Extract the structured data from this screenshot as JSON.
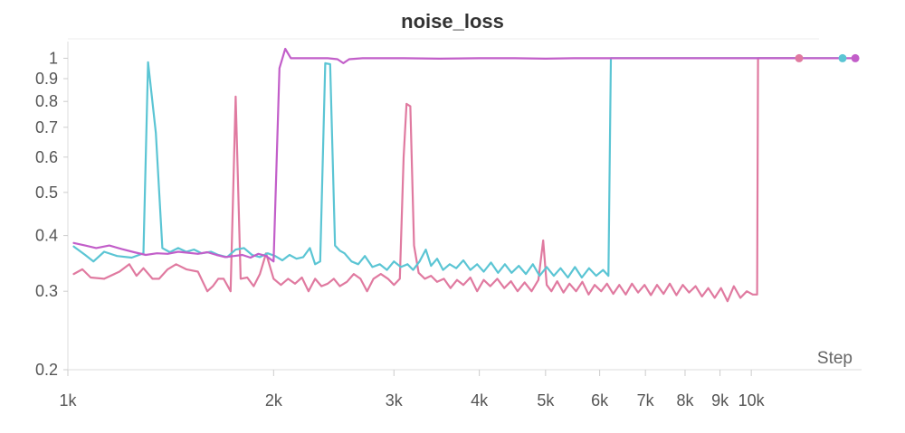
{
  "chart_data": {
    "type": "line",
    "title": "noise_loss",
    "xlabel": "Step",
    "ylabel": "",
    "xscale": "log",
    "yscale": "log",
    "xlim": [
      1000,
      14500
    ],
    "ylim": [
      0.2,
      1.05
    ],
    "grid": false,
    "legend": "none",
    "x_ticks": [
      {
        "value": 1000,
        "label": "1k"
      },
      {
        "value": 2000,
        "label": "2k"
      },
      {
        "value": 3000,
        "label": "3k"
      },
      {
        "value": 4000,
        "label": "4k"
      },
      {
        "value": 5000,
        "label": "5k"
      },
      {
        "value": 6000,
        "label": "6k"
      },
      {
        "value": 7000,
        "label": "7k"
      },
      {
        "value": 8000,
        "label": "8k"
      },
      {
        "value": 9000,
        "label": "9k"
      },
      {
        "value": 10000,
        "label": "10k"
      }
    ],
    "y_ticks": [
      {
        "value": 0.2,
        "label": "0.2"
      },
      {
        "value": 0.3,
        "label": "0.3"
      },
      {
        "value": 0.4,
        "label": "0.4"
      },
      {
        "value": 0.5,
        "label": "0.5"
      },
      {
        "value": 0.6,
        "label": "0.6"
      },
      {
        "value": 0.7,
        "label": "0.7"
      },
      {
        "value": 0.8,
        "label": "0.8"
      },
      {
        "value": 0.9,
        "label": "0.9"
      },
      {
        "value": 1,
        "label": "1"
      }
    ],
    "series": [
      {
        "color": "#e07aa0",
        "points": [
          [
            1020,
            0.328
          ],
          [
            1050,
            0.336
          ],
          [
            1080,
            0.322
          ],
          [
            1130,
            0.32
          ],
          [
            1190,
            0.332
          ],
          [
            1230,
            0.345
          ],
          [
            1260,
            0.325
          ],
          [
            1290,
            0.338
          ],
          [
            1330,
            0.32
          ],
          [
            1360,
            0.32
          ],
          [
            1400,
            0.336
          ],
          [
            1440,
            0.345
          ],
          [
            1490,
            0.336
          ],
          [
            1550,
            0.332
          ],
          [
            1600,
            0.3
          ],
          [
            1630,
            0.308
          ],
          [
            1660,
            0.32
          ],
          [
            1690,
            0.32
          ],
          [
            1730,
            0.3
          ],
          [
            1760,
            0.82
          ],
          [
            1790,
            0.32
          ],
          [
            1830,
            0.322
          ],
          [
            1870,
            0.308
          ],
          [
            1910,
            0.328
          ],
          [
            1950,
            0.365
          ],
          [
            2000,
            0.32
          ],
          [
            2050,
            0.31
          ],
          [
            2100,
            0.32
          ],
          [
            2150,
            0.312
          ],
          [
            2200,
            0.322
          ],
          [
            2250,
            0.3
          ],
          [
            2300,
            0.32
          ],
          [
            2350,
            0.308
          ],
          [
            2400,
            0.312
          ],
          [
            2450,
            0.32
          ],
          [
            2500,
            0.308
          ],
          [
            2560,
            0.315
          ],
          [
            2620,
            0.328
          ],
          [
            2680,
            0.32
          ],
          [
            2740,
            0.3
          ],
          [
            2800,
            0.32
          ],
          [
            2870,
            0.328
          ],
          [
            2940,
            0.32
          ],
          [
            3000,
            0.31
          ],
          [
            3060,
            0.32
          ],
          [
            3100,
            0.6
          ],
          [
            3130,
            0.79
          ],
          [
            3170,
            0.78
          ],
          [
            3210,
            0.38
          ],
          [
            3260,
            0.33
          ],
          [
            3330,
            0.32
          ],
          [
            3400,
            0.325
          ],
          [
            3470,
            0.315
          ],
          [
            3550,
            0.32
          ],
          [
            3630,
            0.305
          ],
          [
            3710,
            0.318
          ],
          [
            3790,
            0.31
          ],
          [
            3880,
            0.322
          ],
          [
            3970,
            0.3
          ],
          [
            4060,
            0.318
          ],
          [
            4150,
            0.308
          ],
          [
            4250,
            0.32
          ],
          [
            4350,
            0.305
          ],
          [
            4450,
            0.316
          ],
          [
            4550,
            0.3
          ],
          [
            4660,
            0.314
          ],
          [
            4770,
            0.3
          ],
          [
            4880,
            0.318
          ],
          [
            4960,
            0.39
          ],
          [
            5020,
            0.31
          ],
          [
            5100,
            0.3
          ],
          [
            5200,
            0.316
          ],
          [
            5310,
            0.298
          ],
          [
            5420,
            0.312
          ],
          [
            5540,
            0.3
          ],
          [
            5660,
            0.315
          ],
          [
            5780,
            0.295
          ],
          [
            5900,
            0.31
          ],
          [
            6030,
            0.3
          ],
          [
            6150,
            0.312
          ],
          [
            6280,
            0.296
          ],
          [
            6410,
            0.31
          ],
          [
            6550,
            0.295
          ],
          [
            6690,
            0.312
          ],
          [
            6830,
            0.298
          ],
          [
            6980,
            0.31
          ],
          [
            7130,
            0.294
          ],
          [
            7280,
            0.31
          ],
          [
            7440,
            0.296
          ],
          [
            7600,
            0.312
          ],
          [
            7770,
            0.294
          ],
          [
            7940,
            0.31
          ],
          [
            8110,
            0.298
          ],
          [
            8290,
            0.308
          ],
          [
            8470,
            0.292
          ],
          [
            8650,
            0.305
          ],
          [
            8840,
            0.29
          ],
          [
            9030,
            0.305
          ],
          [
            9230,
            0.285
          ],
          [
            9430,
            0.308
          ],
          [
            9640,
            0.29
          ],
          [
            9850,
            0.3
          ],
          [
            10050,
            0.295
          ],
          [
            10200,
            0.295
          ],
          [
            10230,
            1.0
          ],
          [
            10500,
            1.0
          ],
          [
            11000,
            1.0
          ],
          [
            11750,
            1.0
          ]
        ]
      },
      {
        "color": "#5bc5d4",
        "points": [
          [
            1020,
            0.378
          ],
          [
            1060,
            0.362
          ],
          [
            1090,
            0.35
          ],
          [
            1130,
            0.368
          ],
          [
            1180,
            0.36
          ],
          [
            1240,
            0.357
          ],
          [
            1290,
            0.365
          ],
          [
            1310,
            0.98
          ],
          [
            1345,
            0.68
          ],
          [
            1375,
            0.375
          ],
          [
            1410,
            0.367
          ],
          [
            1450,
            0.375
          ],
          [
            1490,
            0.368
          ],
          [
            1530,
            0.372
          ],
          [
            1570,
            0.365
          ],
          [
            1620,
            0.368
          ],
          [
            1660,
            0.362
          ],
          [
            1710,
            0.358
          ],
          [
            1760,
            0.372
          ],
          [
            1810,
            0.375
          ],
          [
            1860,
            0.362
          ],
          [
            1910,
            0.358
          ],
          [
            1960,
            0.365
          ],
          [
            2010,
            0.36
          ],
          [
            2060,
            0.352
          ],
          [
            2110,
            0.362
          ],
          [
            2160,
            0.355
          ],
          [
            2210,
            0.358
          ],
          [
            2260,
            0.375
          ],
          [
            2300,
            0.345
          ],
          [
            2340,
            0.35
          ],
          [
            2380,
            0.975
          ],
          [
            2420,
            0.97
          ],
          [
            2460,
            0.38
          ],
          [
            2500,
            0.37
          ],
          [
            2540,
            0.365
          ],
          [
            2600,
            0.35
          ],
          [
            2660,
            0.345
          ],
          [
            2720,
            0.36
          ],
          [
            2790,
            0.34
          ],
          [
            2860,
            0.345
          ],
          [
            2930,
            0.335
          ],
          [
            3000,
            0.35
          ],
          [
            3070,
            0.34
          ],
          [
            3140,
            0.345
          ],
          [
            3200,
            0.335
          ],
          [
            3270,
            0.35
          ],
          [
            3340,
            0.372
          ],
          [
            3400,
            0.342
          ],
          [
            3470,
            0.355
          ],
          [
            3540,
            0.335
          ],
          [
            3620,
            0.345
          ],
          [
            3700,
            0.338
          ],
          [
            3790,
            0.352
          ],
          [
            3880,
            0.335
          ],
          [
            3970,
            0.345
          ],
          [
            4060,
            0.332
          ],
          [
            4160,
            0.348
          ],
          [
            4260,
            0.33
          ],
          [
            4360,
            0.345
          ],
          [
            4460,
            0.33
          ],
          [
            4570,
            0.342
          ],
          [
            4680,
            0.328
          ],
          [
            4790,
            0.345
          ],
          [
            4900,
            0.325
          ],
          [
            5020,
            0.34
          ],
          [
            5140,
            0.325
          ],
          [
            5260,
            0.338
          ],
          [
            5390,
            0.322
          ],
          [
            5520,
            0.34
          ],
          [
            5650,
            0.322
          ],
          [
            5790,
            0.338
          ],
          [
            5930,
            0.325
          ],
          [
            6070,
            0.335
          ],
          [
            6180,
            0.325
          ],
          [
            6230,
            1.0
          ],
          [
            6600,
            1.0
          ],
          [
            7500,
            1.0
          ],
          [
            8500,
            1.0
          ],
          [
            10000,
            1.0
          ],
          [
            12000,
            1.0
          ],
          [
            13600,
            1.0
          ]
        ]
      },
      {
        "color": "#c25ec9",
        "points": [
          [
            1020,
            0.385
          ],
          [
            1060,
            0.38
          ],
          [
            1100,
            0.375
          ],
          [
            1150,
            0.38
          ],
          [
            1200,
            0.373
          ],
          [
            1250,
            0.367
          ],
          [
            1300,
            0.362
          ],
          [
            1350,
            0.365
          ],
          [
            1400,
            0.364
          ],
          [
            1450,
            0.368
          ],
          [
            1500,
            0.366
          ],
          [
            1550,
            0.364
          ],
          [
            1600,
            0.367
          ],
          [
            1650,
            0.362
          ],
          [
            1700,
            0.358
          ],
          [
            1750,
            0.36
          ],
          [
            1800,
            0.362
          ],
          [
            1850,
            0.357
          ],
          [
            1900,
            0.364
          ],
          [
            1950,
            0.36
          ],
          [
            2000,
            0.35
          ],
          [
            2040,
            0.95
          ],
          [
            2080,
            1.05
          ],
          [
            2120,
            1.0
          ],
          [
            2200,
            1.0
          ],
          [
            2300,
            1.0
          ],
          [
            2400,
            1.0
          ],
          [
            2480,
            0.995
          ],
          [
            2530,
            0.975
          ],
          [
            2580,
            0.995
          ],
          [
            2700,
            1.0
          ],
          [
            2900,
            1.0
          ],
          [
            3100,
            1.0
          ],
          [
            3500,
            0.998
          ],
          [
            4000,
            1.0
          ],
          [
            4500,
            1.0
          ],
          [
            5000,
            0.998
          ],
          [
            5500,
            1.0
          ],
          [
            6000,
            1.0
          ],
          [
            7000,
            1.0
          ],
          [
            8000,
            1.0
          ],
          [
            9000,
            1.0
          ],
          [
            10000,
            1.0
          ],
          [
            11000,
            1.0
          ],
          [
            12000,
            1.0
          ],
          [
            13000,
            1.0
          ],
          [
            14200,
            1.0
          ]
        ]
      }
    ]
  }
}
